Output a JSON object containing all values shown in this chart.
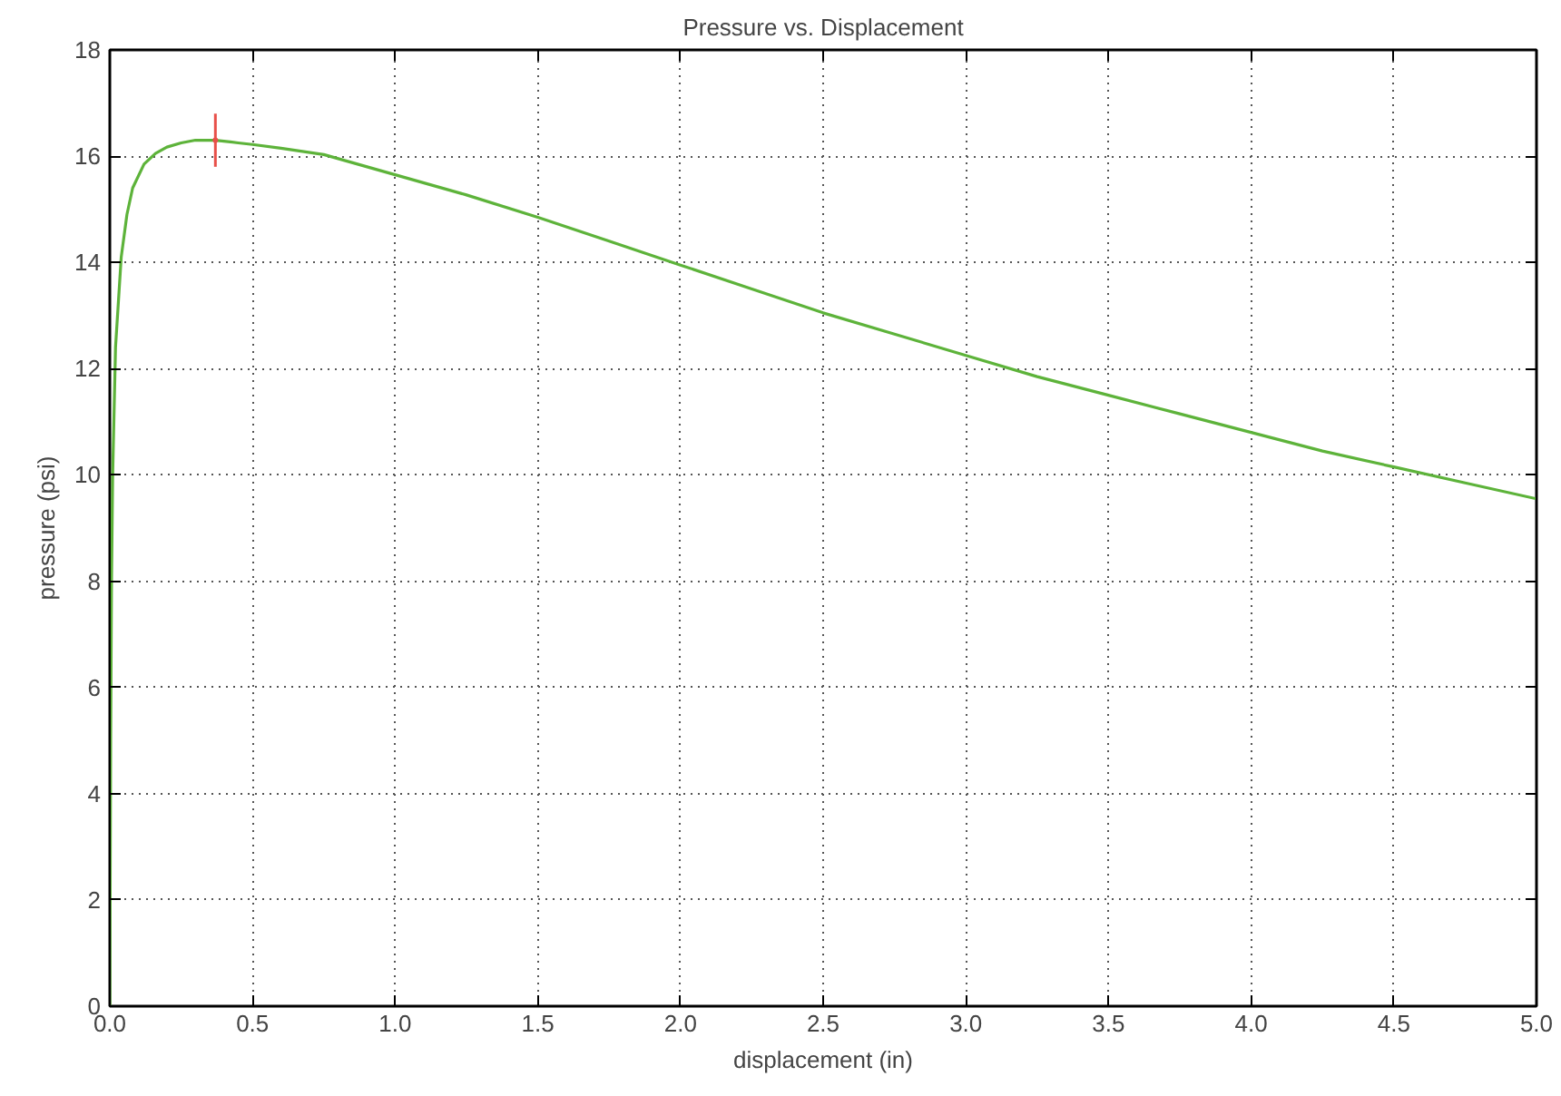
{
  "chart_data": {
    "type": "line",
    "title": "Pressure vs. Displacement",
    "xlabel": "displacement (in)",
    "ylabel": "pressure (psi)",
    "xlim": [
      0,
      5
    ],
    "ylim": [
      0,
      18
    ],
    "xticks": [
      {
        "value": 0,
        "label": "0.0"
      },
      {
        "value": 0.5,
        "label": "0.5"
      },
      {
        "value": 1,
        "label": "1.0"
      },
      {
        "value": 1.5,
        "label": "1.5"
      },
      {
        "value": 2,
        "label": "2.0"
      },
      {
        "value": 2.5,
        "label": "2.5"
      },
      {
        "value": 3,
        "label": "3.0"
      },
      {
        "value": 3.5,
        "label": "3.5"
      },
      {
        "value": 4,
        "label": "4.0"
      },
      {
        "value": 4.5,
        "label": "4.5"
      },
      {
        "value": 5,
        "label": "5.0"
      }
    ],
    "yticks": [
      0,
      2,
      4,
      6,
      8,
      10,
      12,
      14,
      16,
      18
    ],
    "grid": true,
    "marker": "none",
    "line_style": "solid",
    "series": [
      {
        "color": "#5db33a",
        "x": [
          0,
          0.003,
          0.006,
          0.01,
          0.02,
          0.04,
          0.06,
          0.08,
          0.12,
          0.16,
          0.2,
          0.25,
          0.3,
          0.37,
          0.45,
          0.5,
          0.6,
          0.75,
          1.0,
          1.25,
          1.5,
          1.75,
          2.0,
          2.25,
          2.5,
          2.75,
          3.0,
          3.25,
          3.5,
          3.75,
          4.0,
          4.25,
          4.5,
          4.75,
          5.0
        ],
        "values": [
          0,
          5,
          8,
          10,
          12.4,
          14.1,
          14.9,
          15.4,
          15.85,
          16.05,
          16.17,
          16.25,
          16.3,
          16.3,
          16.25,
          16.22,
          16.15,
          16.03,
          15.65,
          15.27,
          14.85,
          14.4,
          13.95,
          13.5,
          13.05,
          12.65,
          12.25,
          11.85,
          11.5,
          11.15,
          10.8,
          10.45,
          10.15,
          9.85,
          9.55
        ]
      },
      {
        "type": "scatter",
        "color": "#e8504a",
        "x": [
          0.37
        ],
        "values": [
          16.3
        ],
        "errors": [
          0.5
        ],
        "marker": "none"
      }
    ]
  }
}
